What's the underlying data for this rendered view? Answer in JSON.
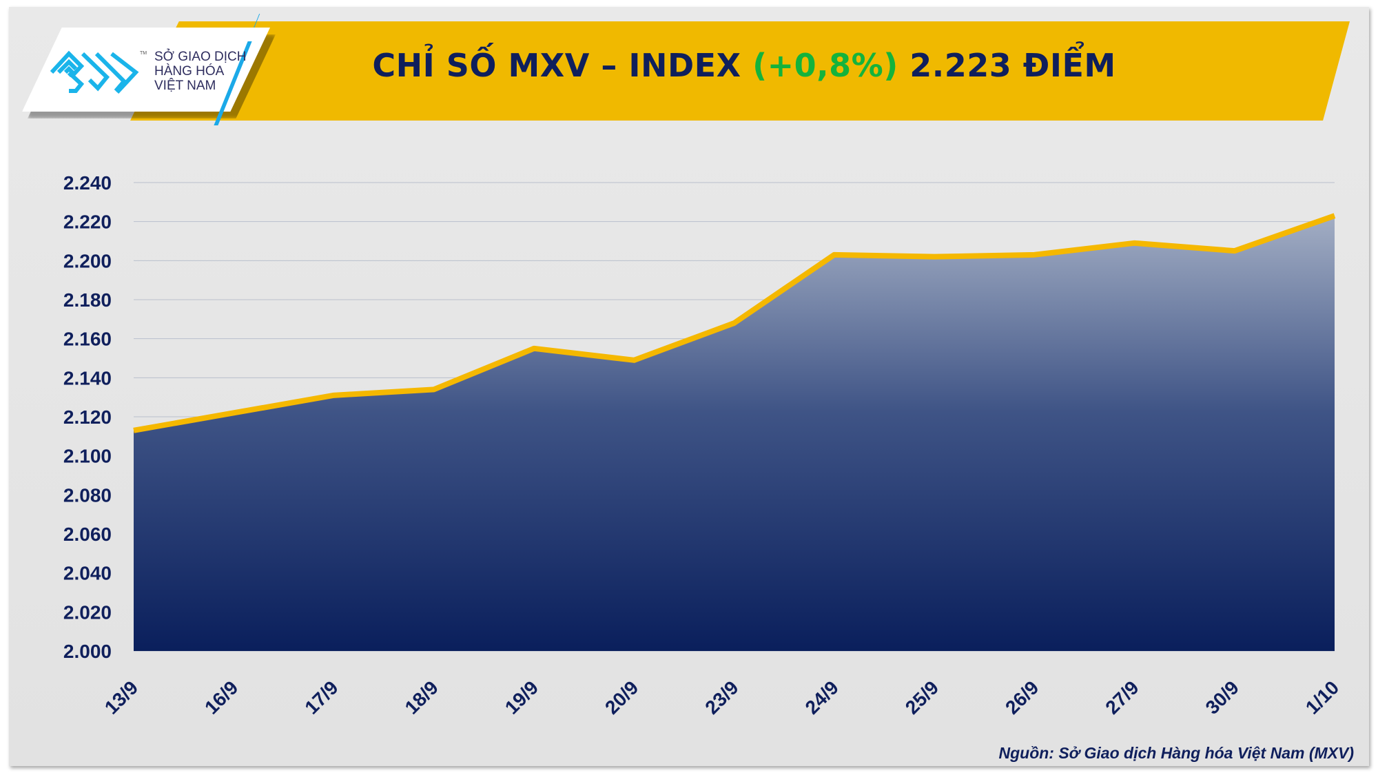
{
  "header": {
    "title_prefix": "CHỈ SỐ MXV – INDEX ",
    "title_change": "(+0,8%)",
    "title_suffix": " 2.223 ĐIỂM",
    "change_color": "#14b33c",
    "banner_color": "#f0b900"
  },
  "logo": {
    "line1": "SỞ GIAO DỊCH",
    "line2": "HÀNG HÓA",
    "line3": "VIỆT NAM",
    "tm": "TM",
    "icon": "mxv-maze-logo-icon"
  },
  "source": "Nguồn: Sở Giao dịch Hàng hóa Việt Nam (MXV)",
  "chart_data": {
    "type": "area",
    "title": "CHỈ SỐ MXV – INDEX (+0,8%) 2.223 ĐIỂM",
    "categories": [
      "13/9",
      "16/9",
      "17/9",
      "18/9",
      "19/9",
      "20/9",
      "23/9",
      "24/9",
      "25/9",
      "26/9",
      "27/9",
      "30/9",
      "1/10"
    ],
    "values": [
      2113,
      2122,
      2131,
      2134,
      2155,
      2149,
      2168,
      2203,
      2202,
      2203,
      2209,
      2205,
      2223
    ],
    "ylim": [
      2000,
      2240
    ],
    "yticks": [
      2000,
      2020,
      2040,
      2060,
      2080,
      2100,
      2120,
      2140,
      2160,
      2180,
      2200,
      2220,
      2240
    ],
    "ytick_labels": [
      "2.000",
      "2.020",
      "2.040",
      "2.060",
      "2.080",
      "2.100",
      "2.120",
      "2.140",
      "2.160",
      "2.180",
      "2.200",
      "2.220",
      "2.240"
    ],
    "grid": true,
    "line_color": "#f5b800",
    "fill_color_top": "#a3aec4",
    "fill_color_bottom": "#0a1f5c"
  }
}
